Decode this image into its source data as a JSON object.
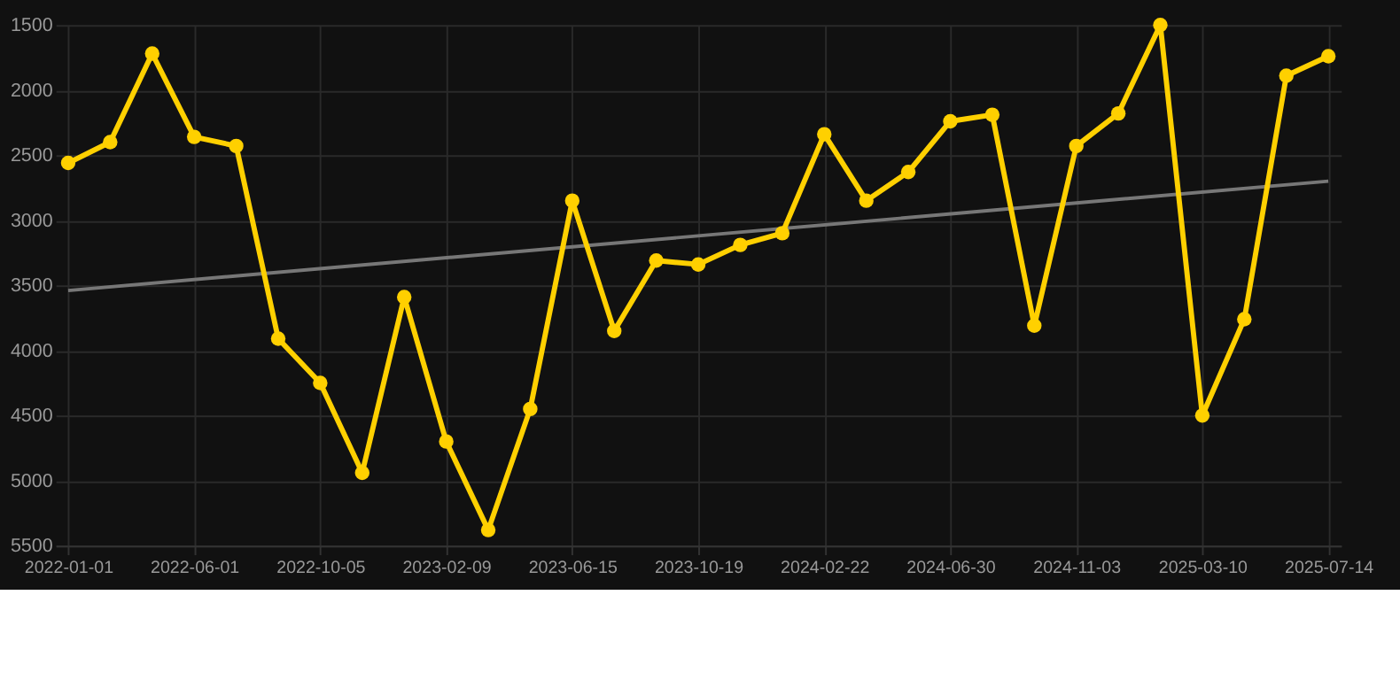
{
  "chart_data": {
    "type": "line",
    "categories": [
      "2022-01-01",
      null,
      null,
      "2022-06-01",
      null,
      null,
      "2022-10-05",
      null,
      null,
      "2023-02-09",
      null,
      null,
      "2023-06-15",
      null,
      null,
      "2023-10-19",
      null,
      null,
      "2024-02-22",
      null,
      null,
      "2024-06-30",
      null,
      null,
      "2024-11-03",
      null,
      null,
      "2025-03-10",
      null,
      null,
      "2025-07-14"
    ],
    "series": [
      {
        "color": "#ffd000",
        "marker": "circle",
        "values": [
          2560,
          2400,
          1720,
          2360,
          2430,
          3910,
          4250,
          4940,
          3590,
          4700,
          5380,
          4450,
          2850,
          3850,
          3310,
          3340,
          3190,
          3100,
          2340,
          2850,
          2630,
          2240,
          2190,
          3810,
          2430,
          2180,
          1500,
          4500,
          3760,
          1890,
          1740
        ]
      },
      {
        "color": "#777777",
        "marker": "none",
        "values": [
          3540,
          null,
          null,
          null,
          null,
          null,
          null,
          null,
          null,
          null,
          null,
          null,
          null,
          null,
          null,
          null,
          null,
          null,
          null,
          null,
          null,
          null,
          null,
          null,
          null,
          null,
          null,
          null,
          null,
          null,
          2700
        ]
      }
    ],
    "ylim": [
      5500,
      1500
    ],
    "yticks": [
      1500,
      2000,
      2500,
      3000,
      3500,
      4000,
      4500,
      5000,
      5500
    ],
    "grid": true
  }
}
